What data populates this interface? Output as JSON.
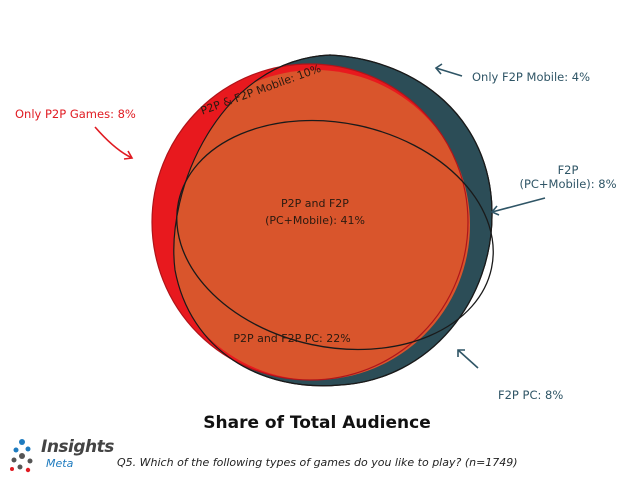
{
  "regions": {
    "p2p_f2p_mobile": "P2P & F2P Mobile: 10%",
    "p2p_f2p_pc_mobile_line1": "P2P and F2P",
    "p2p_f2p_pc_mobile_line2": "(PC+Mobile): 41%",
    "p2p_f2p_pc": "P2P and F2P PC: 22%"
  },
  "callouts": {
    "only_p2p_games": "Only P2P Games: 8%",
    "only_f2p_mobile": "Only F2P Mobile: 4%",
    "f2p_pc_mobile_line1": "F2P",
    "f2p_pc_mobile_line2": "(PC+Mobile): 8%",
    "f2p_pc": "F2P PC: 8%"
  },
  "title": "Share of Total Audience",
  "question": "Q5. Which of the following types of games do you like to play? (n=1749)",
  "logo": {
    "word": "Insights",
    "sub": "Meta"
  },
  "colors": {
    "red": "#e8191e",
    "orange": "#d9552c",
    "teal": "#2c4d57",
    "callout_red": "#e01b22",
    "callout_teal": "#2f5566"
  }
}
